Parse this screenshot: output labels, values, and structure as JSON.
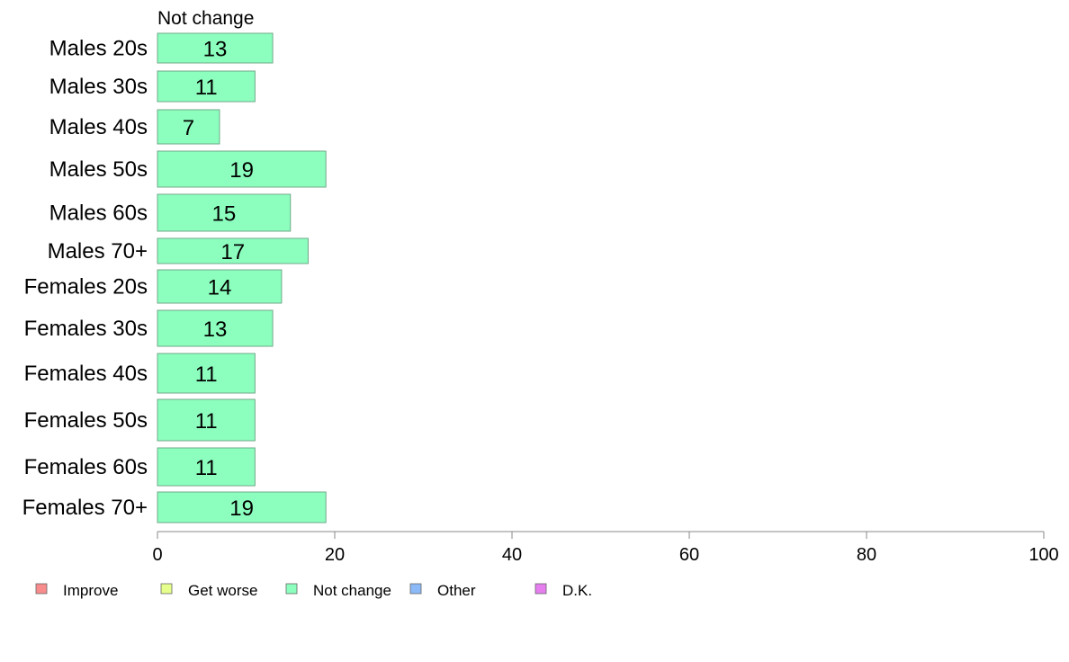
{
  "chart_data": {
    "type": "bar",
    "orientation": "horizontal",
    "stacked": true,
    "categories": [
      "Males 20s",
      "Males 30s",
      "Males 40s",
      "Males 50s",
      "Males 60s",
      "Males 70+",
      "Females 20s",
      "Females 30s",
      "Females 40s",
      "Females 50s",
      "Females 60s",
      "Females 70+"
    ],
    "series": [
      {
        "name": "Not change",
        "values": [
          13,
          11,
          7,
          19,
          15,
          17,
          14,
          13,
          11,
          11,
          11,
          19
        ]
      }
    ],
    "series_header": "Not change",
    "xlim": [
      0,
      100
    ],
    "xticks": [
      0,
      20,
      40,
      60,
      80,
      100
    ],
    "grid": false,
    "legend": {
      "position": "bottom-left",
      "entries": [
        {
          "label": "Improve",
          "color": "#f88c8c"
        },
        {
          "label": "Get worse",
          "color": "#e6ff8c"
        },
        {
          "label": "Not change",
          "color": "#8cffbe"
        },
        {
          "label": "Other",
          "color": "#8cbaf8"
        },
        {
          "label": "D.K.",
          "color": "#e67ef0"
        }
      ]
    },
    "bar_color": "#8cffbe"
  }
}
